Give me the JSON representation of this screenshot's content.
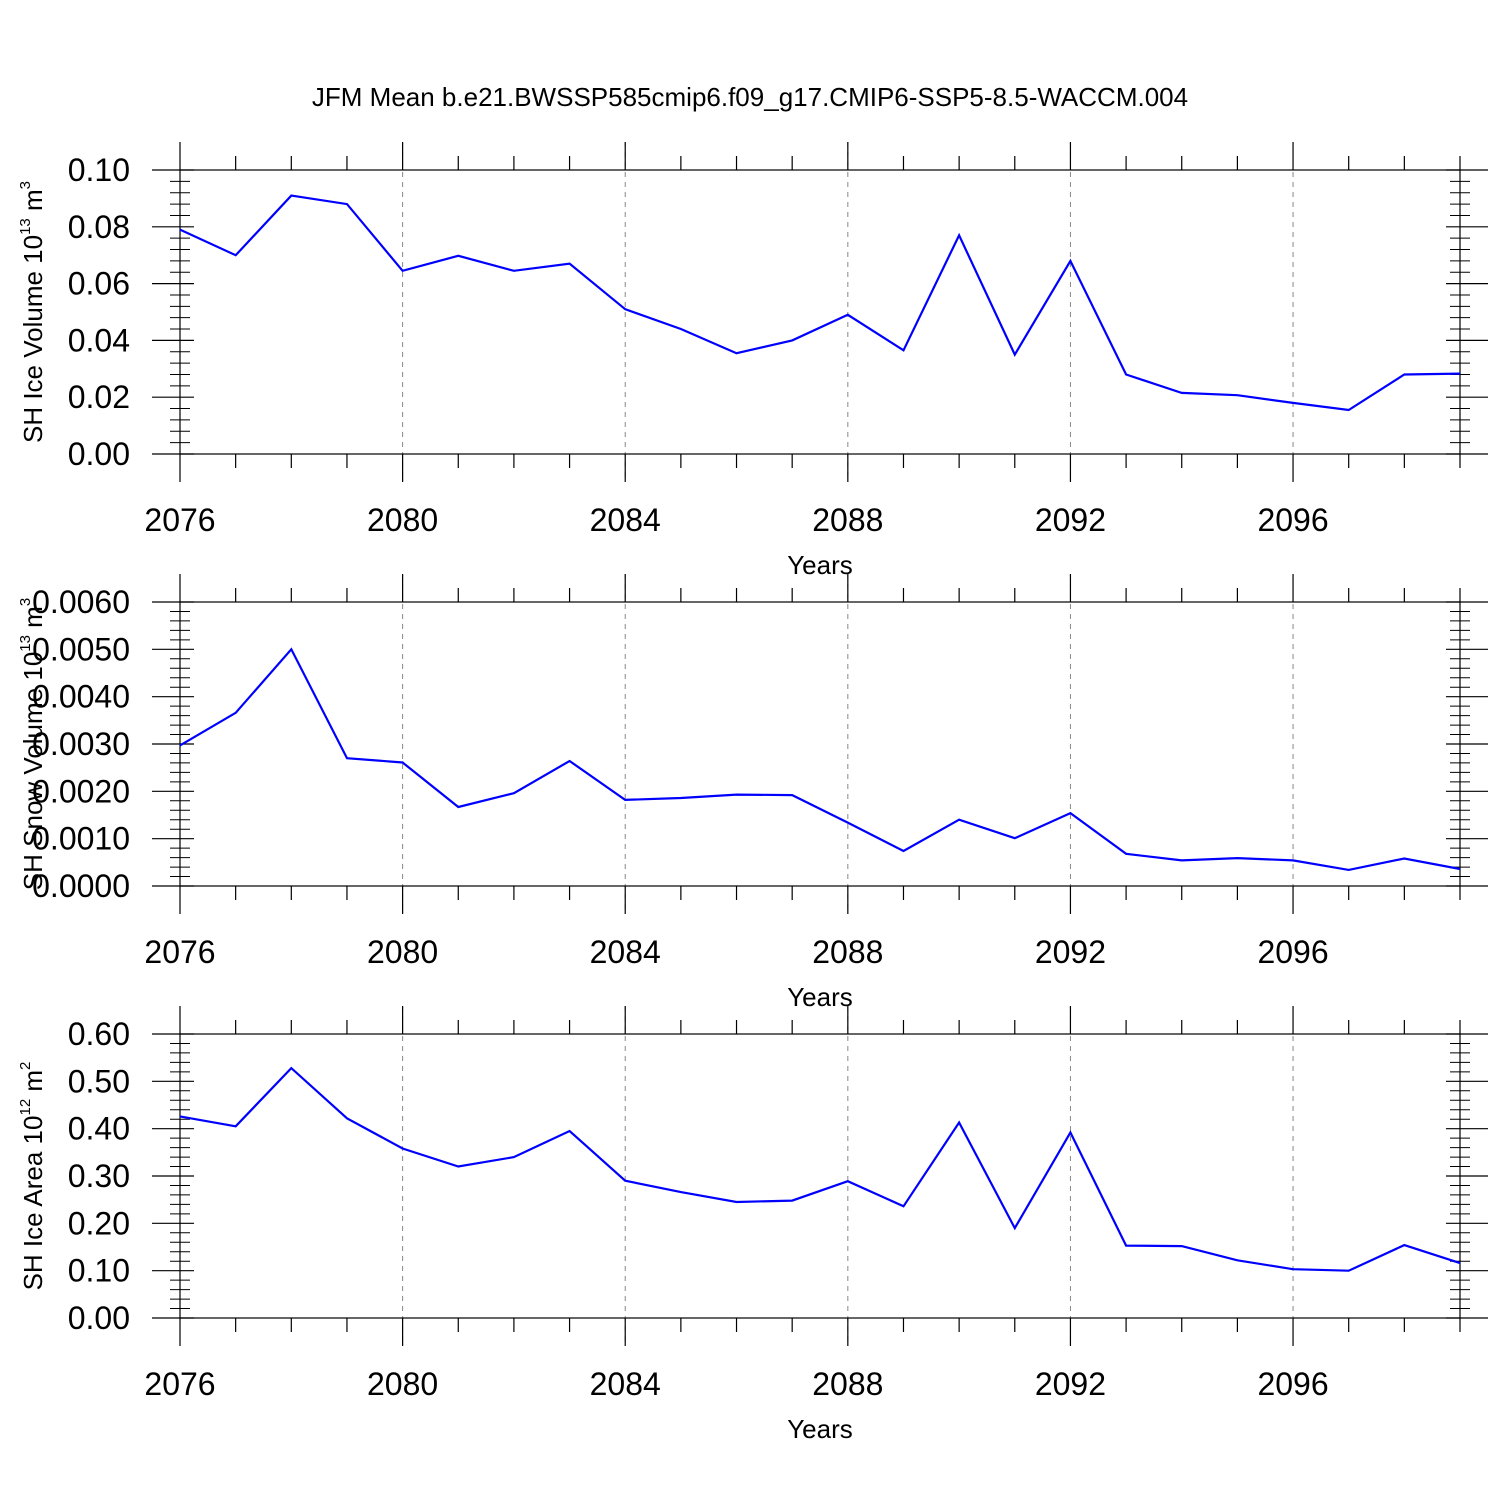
{
  "title": "JFM Mean b.e21.BWSSP585cmip6.f09_g17.CMIP6-SSP5-8.5-WACCM.004",
  "colors": {
    "series": "#0000ff",
    "axis": "#000000",
    "grid": "#888888"
  },
  "chart_data": [
    {
      "type": "line",
      "xlabel": "Years",
      "ylabel": {
        "main": "SH Ice Volume 10",
        "sup1": "13",
        "unit": " m",
        "sup2": "3"
      },
      "xlim": [
        2076,
        2099
      ],
      "ylim": [
        0,
        0.1
      ],
      "yticks": [
        "0.00",
        "0.02",
        "0.04",
        "0.06",
        "0.08",
        "0.10"
      ],
      "xticks": [
        "2076",
        "2080",
        "2084",
        "2088",
        "2092",
        "2096"
      ],
      "grid": "vertical dashed at major x ticks",
      "series": [
        {
          "x": [
            2076,
            2077,
            2078,
            2079,
            2080,
            2081,
            2082,
            2083,
            2084,
            2085,
            2086,
            2087,
            2088,
            2089,
            2090,
            2091,
            2092,
            2093,
            2094,
            2095,
            2096,
            2097,
            2098,
            2099
          ],
          "y": [
            0.079,
            0.07,
            0.091,
            0.088,
            0.0645,
            0.0698,
            0.0645,
            0.067,
            0.051,
            0.044,
            0.0355,
            0.04,
            0.049,
            0.0365,
            0.077,
            0.035,
            0.068,
            0.028,
            0.0215,
            0.0207,
            0.018,
            0.0155,
            0.028,
            0.0283
          ]
        }
      ]
    },
    {
      "type": "line",
      "xlabel": "Years",
      "ylabel": {
        "main": "SH Snow Volume 10",
        "sup1": "13",
        "unit": " m",
        "sup2": "3"
      },
      "xlim": [
        2076,
        2099
      ],
      "ylim": [
        0,
        0.006
      ],
      "yticks": [
        "0.0000",
        "0.0010",
        "0.0020",
        "0.0030",
        "0.0040",
        "0.0050",
        "0.0060"
      ],
      "xticks": [
        "2076",
        "2080",
        "2084",
        "2088",
        "2092",
        "2096"
      ],
      "grid": "vertical dashed at major x ticks",
      "series": [
        {
          "x": [
            2076,
            2077,
            2078,
            2079,
            2080,
            2081,
            2082,
            2083,
            2084,
            2085,
            2086,
            2087,
            2088,
            2089,
            2090,
            2091,
            2092,
            2093,
            2094,
            2095,
            2096,
            2097,
            2098,
            2099
          ],
          "y": [
            0.00297,
            0.00366,
            0.005,
            0.0027,
            0.00261,
            0.00167,
            0.00196,
            0.00264,
            0.00182,
            0.00186,
            0.00193,
            0.00192,
            0.00134,
            0.00074,
            0.0014,
            0.00101,
            0.00154,
            0.00068,
            0.00054,
            0.00059,
            0.00054,
            0.00034,
            0.00058,
            0.00036
          ]
        }
      ]
    },
    {
      "type": "line",
      "xlabel": "Years",
      "ylabel": {
        "main": "SH Ice Area 10",
        "sup1": "12",
        "unit": " m",
        "sup2": "2"
      },
      "xlim": [
        2076,
        2099
      ],
      "ylim": [
        0,
        0.6
      ],
      "yticks": [
        "0.00",
        "0.10",
        "0.20",
        "0.30",
        "0.40",
        "0.50",
        "0.60"
      ],
      "xticks": [
        "2076",
        "2080",
        "2084",
        "2088",
        "2092",
        "2096"
      ],
      "grid": "vertical dashed at major x ticks",
      "series": [
        {
          "x": [
            2076,
            2077,
            2078,
            2079,
            2080,
            2081,
            2082,
            2083,
            2084,
            2085,
            2086,
            2087,
            2088,
            2089,
            2090,
            2091,
            2092,
            2093,
            2094,
            2095,
            2096,
            2097,
            2098,
            2099
          ],
          "y": [
            0.426,
            0.405,
            0.528,
            0.422,
            0.358,
            0.32,
            0.34,
            0.395,
            0.29,
            0.266,
            0.245,
            0.248,
            0.289,
            0.236,
            0.413,
            0.19,
            0.392,
            0.153,
            0.152,
            0.122,
            0.103,
            0.1,
            0.154,
            0.116
          ]
        }
      ]
    }
  ]
}
